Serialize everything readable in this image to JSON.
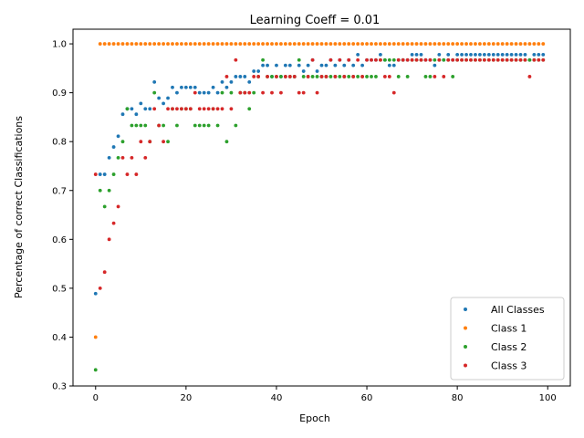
{
  "chart_data": {
    "type": "scatter",
    "title": "Learning Coeff = 0.01",
    "xlabel": "Epoch",
    "ylabel": "Percentage of correct Classifications",
    "xlim": [
      -5,
      105
    ],
    "ylim": [
      0.3,
      1.03
    ],
    "xticks": [
      0,
      20,
      40,
      60,
      80,
      100
    ],
    "yticks": [
      0.3,
      0.4,
      0.5,
      0.6,
      0.7,
      0.8,
      0.9,
      1.0
    ],
    "xtick_labels": [
      "0",
      "20",
      "40",
      "60",
      "80",
      "100"
    ],
    "ytick_labels": [
      "0.3",
      "0.4",
      "0.5",
      "0.6",
      "0.7",
      "0.8",
      "0.9",
      "1.0"
    ],
    "grid": false,
    "legend": "lower-right",
    "series": [
      {
        "name": "All Classes",
        "color": "#1f77b4",
        "y": [
          0.489,
          0.733,
          0.733,
          0.767,
          0.789,
          0.811,
          0.856,
          0.867,
          0.867,
          0.856,
          0.878,
          0.867,
          0.867,
          0.922,
          0.889,
          0.878,
          0.889,
          0.911,
          0.9,
          0.911,
          0.911,
          0.911,
          0.911,
          0.9,
          0.9,
          0.9,
          0.911,
          0.9,
          0.922,
          0.911,
          0.922,
          0.933,
          0.933,
          0.933,
          0.922,
          0.944,
          0.944,
          0.956,
          0.956,
          0.933,
          0.956,
          0.933,
          0.956,
          0.956,
          0.933,
          0.956,
          0.944,
          0.956,
          0.967,
          0.944,
          0.956,
          0.956,
          0.967,
          0.956,
          0.967,
          0.956,
          0.967,
          0.956,
          0.978,
          0.956,
          0.967,
          0.967,
          0.967,
          0.978,
          0.967,
          0.956,
          0.956,
          0.967,
          0.967,
          0.967,
          0.978,
          0.978,
          0.978,
          0.967,
          0.967,
          0.956,
          0.978,
          0.967,
          0.978,
          0.967,
          0.978,
          0.978,
          0.978,
          0.978,
          0.978,
          0.978,
          0.978,
          0.978,
          0.978,
          0.978,
          0.978,
          0.978,
          0.978,
          0.978,
          0.978,
          0.978,
          0.967,
          0.978,
          0.978,
          0.978
        ]
      },
      {
        "name": "Class 1",
        "color": "#ff7f0e",
        "y": [
          0.4,
          1.0,
          1.0,
          1.0,
          1.0,
          1.0,
          1.0,
          1.0,
          1.0,
          1.0,
          1.0,
          1.0,
          1.0,
          1.0,
          1.0,
          1.0,
          1.0,
          1.0,
          1.0,
          1.0,
          1.0,
          1.0,
          1.0,
          1.0,
          1.0,
          1.0,
          1.0,
          1.0,
          1.0,
          1.0,
          1.0,
          1.0,
          1.0,
          1.0,
          1.0,
          1.0,
          1.0,
          1.0,
          1.0,
          1.0,
          1.0,
          1.0,
          1.0,
          1.0,
          1.0,
          1.0,
          1.0,
          1.0,
          1.0,
          1.0,
          1.0,
          1.0,
          1.0,
          1.0,
          1.0,
          1.0,
          1.0,
          1.0,
          1.0,
          1.0,
          1.0,
          1.0,
          1.0,
          1.0,
          1.0,
          1.0,
          1.0,
          1.0,
          1.0,
          1.0,
          1.0,
          1.0,
          1.0,
          1.0,
          1.0,
          1.0,
          1.0,
          1.0,
          1.0,
          1.0,
          1.0,
          1.0,
          1.0,
          1.0,
          1.0,
          1.0,
          1.0,
          1.0,
          1.0,
          1.0,
          1.0,
          1.0,
          1.0,
          1.0,
          1.0,
          1.0,
          1.0,
          1.0,
          1.0,
          1.0
        ]
      },
      {
        "name": "Class 2",
        "color": "#2ca02c",
        "y": [
          0.333,
          0.7,
          0.667,
          0.7,
          0.733,
          0.767,
          0.8,
          0.867,
          0.833,
          0.833,
          0.833,
          0.833,
          0.8,
          0.9,
          0.833,
          0.833,
          0.8,
          0.867,
          0.833,
          0.867,
          0.867,
          0.867,
          0.833,
          0.833,
          0.833,
          0.833,
          0.867,
          0.833,
          0.9,
          0.8,
          0.9,
          0.833,
          0.9,
          0.9,
          0.867,
          0.9,
          0.933,
          0.967,
          0.933,
          0.933,
          0.933,
          0.933,
          0.933,
          0.933,
          0.933,
          0.967,
          0.933,
          0.933,
          0.933,
          0.933,
          0.933,
          0.933,
          0.933,
          0.933,
          0.933,
          0.933,
          0.933,
          0.933,
          0.933,
          0.933,
          0.933,
          0.933,
          0.933,
          0.967,
          0.967,
          0.967,
          0.967,
          0.933,
          0.967,
          0.933,
          0.967,
          0.967,
          0.967,
          0.933,
          0.933,
          0.967,
          0.967,
          0.967,
          0.967,
          0.933,
          0.967,
          0.967,
          0.967,
          0.967,
          0.967,
          0.967,
          0.967,
          0.967,
          0.967,
          0.967,
          0.967,
          0.967,
          0.967,
          0.967,
          0.967,
          0.967,
          0.967,
          0.967,
          0.967,
          0.967
        ]
      },
      {
        "name": "Class 3",
        "color": "#d62728",
        "y": [
          0.733,
          0.5,
          0.533,
          0.6,
          0.633,
          0.667,
          0.767,
          0.733,
          0.767,
          0.733,
          0.8,
          0.767,
          0.8,
          0.867,
          0.833,
          0.8,
          0.867,
          0.867,
          0.867,
          0.867,
          0.867,
          0.867,
          0.9,
          0.867,
          0.867,
          0.867,
          0.867,
          0.867,
          0.867,
          0.933,
          0.867,
          0.967,
          0.9,
          0.9,
          0.9,
          0.933,
          0.933,
          0.9,
          0.933,
          0.9,
          0.933,
          0.9,
          0.933,
          0.933,
          0.933,
          0.9,
          0.9,
          0.933,
          0.967,
          0.9,
          0.933,
          0.933,
          0.967,
          0.933,
          0.967,
          0.933,
          0.967,
          0.933,
          0.967,
          0.933,
          0.967,
          0.967,
          0.967,
          0.967,
          0.933,
          0.933,
          0.9,
          0.967,
          0.967,
          0.967,
          0.967,
          0.967,
          0.967,
          0.967,
          0.967,
          0.933,
          0.967,
          0.933,
          0.967,
          0.967,
          0.967,
          0.967,
          0.967,
          0.967,
          0.967,
          0.967,
          0.967,
          0.967,
          0.967,
          0.967,
          0.967,
          0.967,
          0.967,
          0.967,
          0.967,
          0.967,
          0.933,
          0.967,
          0.967,
          0.967
        ]
      }
    ]
  }
}
